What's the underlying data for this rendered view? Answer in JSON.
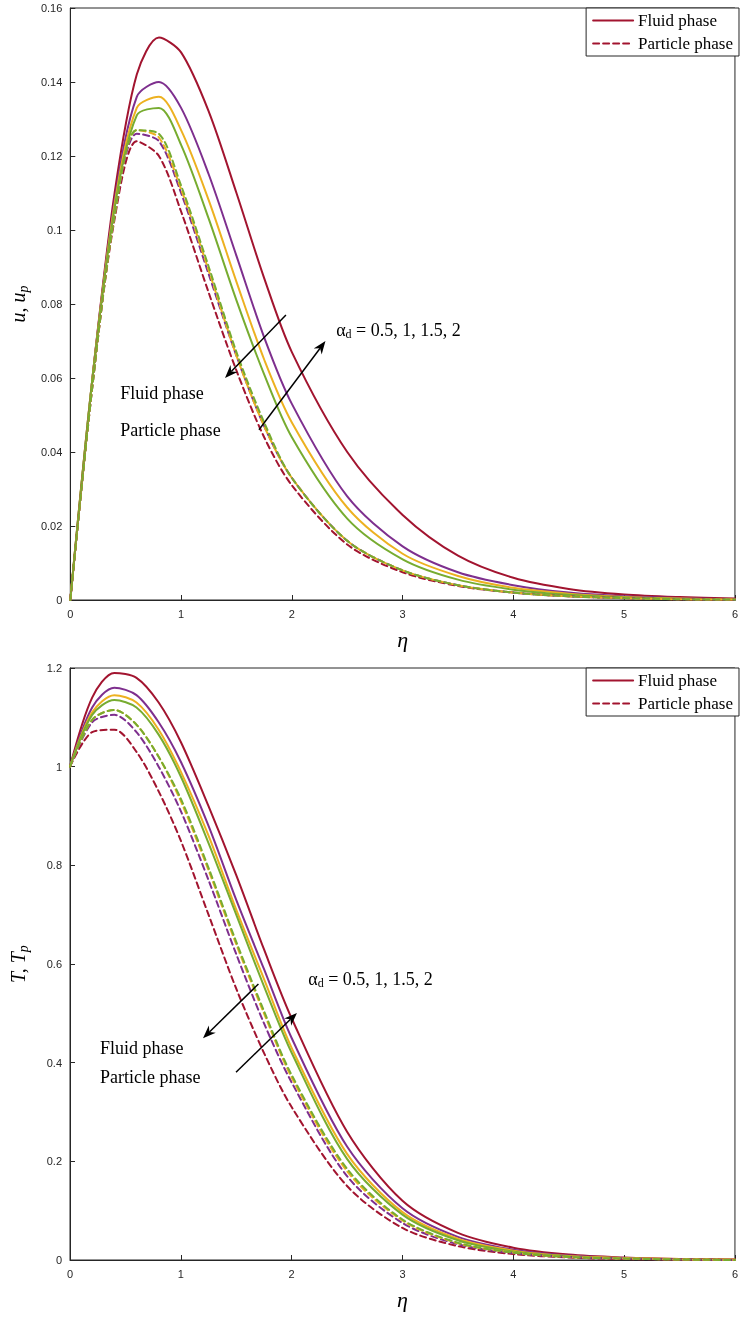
{
  "chart_data": [
    {
      "type": "line",
      "xlabel": "η",
      "ylabel": "u, u$_{p}$",
      "x": [
        0,
        0.2,
        0.4,
        0.6,
        0.8,
        1,
        1.25,
        1.5,
        1.75,
        2,
        2.5,
        3,
        3.5,
        4,
        4.5,
        5,
        5.5,
        6
      ],
      "xlim": [
        0,
        6
      ],
      "xticks": [
        0,
        1,
        2,
        3,
        4,
        5,
        6
      ],
      "ylim": [
        0,
        0.16
      ],
      "yticks": [
        0,
        0.02,
        0.04,
        0.06,
        0.08,
        0.1,
        0.12,
        0.14,
        0.16
      ],
      "grid": false,
      "legend": "top right",
      "marker": "none",
      "annotations": [
        {
          "text": "α$_{d}$ = 0.5, 1, 1.5, 2",
          "x": 2.1,
          "y": 0.062
        },
        "Fluid phase",
        "Particle phase"
      ],
      "series": [
        {
          "name": "Fluid phase",
          "color": "#a2142f",
          "line_style": "solid",
          "values": [
            0,
            0.06,
            0.11,
            0.142,
            0.152,
            0.148,
            0.132,
            0.11,
            0.087,
            0.067,
            0.04,
            0.023,
            0.012,
            0.006,
            0.003,
            0.0015,
            0.0008,
            0.0004
          ]
        },
        {
          "color": "#7e2f8e",
          "line_style": "solid",
          "values": [
            0,
            0.06,
            0.108,
            0.136,
            0.14,
            0.133,
            0.115,
            0.093,
            0.071,
            0.053,
            0.028,
            0.0145,
            0.0075,
            0.004,
            0.002,
            0.001,
            0.0005,
            0.0002
          ]
        },
        {
          "color": "#edb120",
          "line_style": "solid",
          "values": [
            0,
            0.06,
            0.107,
            0.133,
            0.136,
            0.127,
            0.108,
            0.086,
            0.065,
            0.048,
            0.025,
            0.0125,
            0.0065,
            0.0033,
            0.0017,
            0.0008,
            0.0004,
            0.0002
          ]
        },
        {
          "color": "#77ac30",
          "line_style": "solid",
          "values": [
            0,
            0.06,
            0.106,
            0.131,
            0.133,
            0.123,
            0.103,
            0.081,
            0.061,
            0.044,
            0.022,
            0.011,
            0.0055,
            0.0028,
            0.0014,
            0.0007,
            0.0003,
            0.0001
          ]
        },
        {
          "name": "Particle phase",
          "color": "#a2142f",
          "line_style": "dashed",
          "values": [
            0,
            0.058,
            0.103,
            0.124,
            0.12,
            0.105,
            0.083,
            0.062,
            0.044,
            0.031,
            0.015,
            0.0075,
            0.0038,
            0.002,
            0.001,
            0.0005,
            0.0002,
            0.0001
          ]
        },
        {
          "color": "#7e2f8e",
          "line_style": "dashed",
          "values": [
            0,
            0.058,
            0.104,
            0.126,
            0.124,
            0.11,
            0.088,
            0.066,
            0.047,
            0.033,
            0.016,
            0.008,
            0.004,
            0.002,
            0.001,
            0.0005,
            0.0002,
            0.0001
          ]
        },
        {
          "color": "#edb120",
          "line_style": "dashed",
          "values": [
            0,
            0.058,
            0.104,
            0.127,
            0.125,
            0.111,
            0.089,
            0.066,
            0.047,
            0.033,
            0.016,
            0.008,
            0.004,
            0.002,
            0.001,
            0.0005,
            0.0002,
            0.0001
          ]
        },
        {
          "color": "#77ac30",
          "line_style": "dashed",
          "values": [
            0,
            0.058,
            0.104,
            0.127,
            0.126,
            0.112,
            0.09,
            0.067,
            0.048,
            0.033,
            0.016,
            0.008,
            0.004,
            0.002,
            0.001,
            0.0005,
            0.0002,
            0.0001
          ]
        }
      ]
    },
    {
      "type": "line",
      "xlabel": "η",
      "ylabel": "T, T$_{p}$",
      "x": [
        0,
        0.2,
        0.4,
        0.6,
        0.8,
        1,
        1.25,
        1.5,
        1.75,
        2,
        2.5,
        3,
        3.5,
        4,
        4.5,
        5,
        5.5,
        6
      ],
      "xlim": [
        0,
        6
      ],
      "xticks": [
        0,
        1,
        2,
        3,
        4,
        5,
        6
      ],
      "ylim": [
        0,
        1.2
      ],
      "yticks": [
        0,
        0.2,
        0.4,
        0.6,
        0.8,
        1,
        1.2
      ],
      "grid": false,
      "legend": "top right",
      "marker": "none",
      "annotations": [
        "α$_{d}$ = 0.5, 1, 1.5, 2",
        "Fluid phase",
        "Particle phase"
      ],
      "series": [
        {
          "name": "Fluid phase",
          "color": "#a2142f",
          "line_style": "solid",
          "values": [
            1,
            1.14,
            1.19,
            1.18,
            1.13,
            1.05,
            0.92,
            0.78,
            0.63,
            0.49,
            0.26,
            0.12,
            0.055,
            0.025,
            0.011,
            0.005,
            0.002,
            0.001
          ]
        },
        {
          "color": "#7e2f8e",
          "line_style": "solid",
          "values": [
            1,
            1.12,
            1.16,
            1.145,
            1.09,
            1.01,
            0.88,
            0.73,
            0.59,
            0.45,
            0.23,
            0.105,
            0.047,
            0.021,
            0.009,
            0.004,
            0.002,
            0.001
          ]
        },
        {
          "color": "#edb120",
          "line_style": "solid",
          "values": [
            1,
            1.11,
            1.145,
            1.13,
            1.075,
            0.99,
            0.86,
            0.71,
            0.57,
            0.43,
            0.215,
            0.097,
            0.043,
            0.019,
            0.008,
            0.004,
            0.002,
            0.001
          ]
        },
        {
          "color": "#77ac30",
          "line_style": "solid",
          "values": [
            1,
            1.105,
            1.135,
            1.12,
            1.065,
            0.98,
            0.845,
            0.7,
            0.555,
            0.42,
            0.205,
            0.092,
            0.04,
            0.017,
            0.007,
            0.003,
            0.001,
            0
          ]
        },
        {
          "name": "Particle phase",
          "color": "#a2142f",
          "line_style": "dashed",
          "values": [
            1,
            1.07,
            1.075,
            1.03,
            0.95,
            0.85,
            0.7,
            0.55,
            0.42,
            0.31,
            0.15,
            0.065,
            0.028,
            0.012,
            0.005,
            0.002,
            0.001,
            0
          ]
        },
        {
          "color": "#7e2f8e",
          "line_style": "dashed",
          "values": [
            1,
            1.09,
            1.105,
            1.07,
            1,
            0.91,
            0.77,
            0.62,
            0.48,
            0.36,
            0.17,
            0.075,
            0.032,
            0.014,
            0.006,
            0.003,
            0.001,
            0
          ]
        },
        {
          "color": "#edb120",
          "line_style": "dashed",
          "values": [
            1,
            1.095,
            1.115,
            1.085,
            1.02,
            0.93,
            0.79,
            0.64,
            0.5,
            0.37,
            0.18,
            0.08,
            0.034,
            0.015,
            0.006,
            0.003,
            0.001,
            0
          ]
        },
        {
          "color": "#77ac30",
          "line_style": "dashed",
          "values": [
            1,
            1.095,
            1.115,
            1.085,
            1.02,
            0.935,
            0.795,
            0.645,
            0.505,
            0.375,
            0.185,
            0.082,
            0.035,
            0.015,
            0.006,
            0.003,
            0.001,
            0
          ]
        }
      ]
    }
  ]
}
